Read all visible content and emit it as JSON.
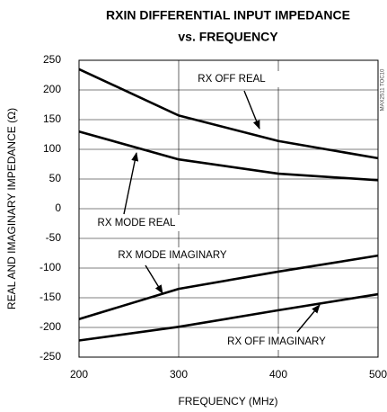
{
  "chart_data": {
    "type": "line",
    "title": "RXIN DIFFERENTIAL INPUT IMPEDANCE",
    "subtitle": "vs. FREQUENCY",
    "x_label": "FREQUENCY (MHz)",
    "y_label": "REAL AND IMAGINARY IMPEDANCE (Ω)",
    "side_note": "MAX2511 TOC10",
    "x": [
      200,
      300,
      400,
      500
    ],
    "series": [
      {
        "name": "RX OFF REAL",
        "color": "#000000",
        "values": [
          235,
          157,
          114,
          85
        ]
      },
      {
        "name": "RX MODE REAL",
        "color": "#000000",
        "values": [
          130,
          83,
          59,
          48
        ]
      },
      {
        "name": "RX MODE IMAGINARY",
        "color": "#000000",
        "values": [
          -186,
          -135,
          -106,
          -79
        ]
      },
      {
        "name": "RX OFF IMAGINARY",
        "color": "#000000",
        "values": [
          -222,
          -199,
          -171,
          -144
        ]
      }
    ],
    "xlim": [
      200,
      500
    ],
    "xticks": [
      200,
      300,
      400,
      500
    ],
    "ylim": [
      -250,
      250
    ],
    "yticks": [
      250,
      200,
      150,
      100,
      50,
      0,
      -50,
      -100,
      -150,
      -200,
      -250
    ],
    "grid": true
  }
}
